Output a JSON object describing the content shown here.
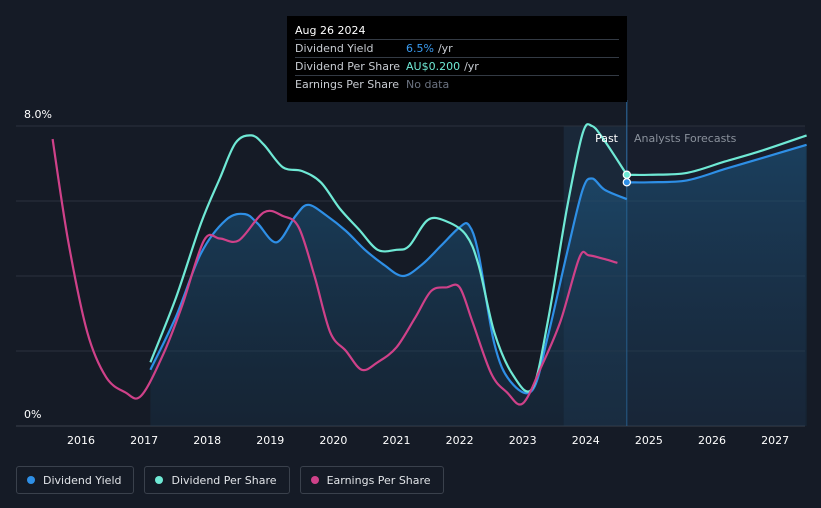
{
  "chart_data": {
    "type": "line",
    "x_ticks": [
      "2016",
      "2017",
      "2018",
      "2019",
      "2020",
      "2021",
      "2022",
      "2023",
      "2024",
      "2025",
      "2026",
      "2027"
    ],
    "y_labels": [
      "8.0%",
      "0%"
    ],
    "ylim": [
      0,
      8.0
    ],
    "past_label": "Past",
    "forecast_label": "Analysts Forecasts",
    "series": [
      {
        "name": "Dividend Yield",
        "color": "#2e8fe6",
        "points": [
          [
            2017.1,
            1.5
          ],
          [
            2017.5,
            2.9
          ],
          [
            2017.9,
            4.6
          ],
          [
            2018.3,
            5.5
          ],
          [
            2018.6,
            5.65
          ],
          [
            2018.8,
            5.4
          ],
          [
            2019.1,
            4.9
          ],
          [
            2019.4,
            5.6
          ],
          [
            2019.6,
            5.9
          ],
          [
            2019.9,
            5.6
          ],
          [
            2020.2,
            5.2
          ],
          [
            2020.5,
            4.7
          ],
          [
            2020.8,
            4.3
          ],
          [
            2021.1,
            4.0
          ],
          [
            2021.4,
            4.3
          ],
          [
            2021.7,
            4.8
          ],
          [
            2022.0,
            5.3
          ],
          [
            2022.15,
            5.35
          ],
          [
            2022.3,
            4.6
          ],
          [
            2022.55,
            2.2
          ],
          [
            2022.8,
            1.2
          ],
          [
            2023.15,
            0.95
          ],
          [
            2023.4,
            2.4
          ],
          [
            2023.7,
            4.6
          ],
          [
            2023.95,
            6.3
          ],
          [
            2024.1,
            6.6
          ],
          [
            2024.3,
            6.3
          ],
          [
            2024.65,
            6.05
          ]
        ],
        "forecast": [
          [
            2024.65,
            6.5
          ],
          [
            2025.0,
            6.5
          ],
          [
            2025.6,
            6.55
          ],
          [
            2026.2,
            6.85
          ],
          [
            2026.8,
            7.15
          ],
          [
            2027.5,
            7.5
          ]
        ]
      },
      {
        "name": "Dividend Per Share",
        "color": "#6fe9d5",
        "points": [
          [
            2017.1,
            1.7
          ],
          [
            2017.5,
            3.4
          ],
          [
            2017.9,
            5.4
          ],
          [
            2018.2,
            6.6
          ],
          [
            2018.45,
            7.55
          ],
          [
            2018.7,
            7.75
          ],
          [
            2018.9,
            7.5
          ],
          [
            2019.2,
            6.9
          ],
          [
            2019.5,
            6.8
          ],
          [
            2019.8,
            6.5
          ],
          [
            2020.1,
            5.8
          ],
          [
            2020.4,
            5.25
          ],
          [
            2020.7,
            4.7
          ],
          [
            2021.0,
            4.7
          ],
          [
            2021.2,
            4.8
          ],
          [
            2021.5,
            5.5
          ],
          [
            2021.8,
            5.45
          ],
          [
            2022.1,
            5.1
          ],
          [
            2022.3,
            4.3
          ],
          [
            2022.55,
            2.5
          ],
          [
            2022.85,
            1.35
          ],
          [
            2023.15,
            1.0
          ],
          [
            2023.4,
            2.8
          ],
          [
            2023.7,
            5.8
          ],
          [
            2023.95,
            7.8
          ],
          [
            2024.1,
            8.0
          ],
          [
            2024.3,
            7.6
          ],
          [
            2024.65,
            6.7
          ]
        ],
        "forecast": [
          [
            2024.65,
            6.7
          ],
          [
            2025.0,
            6.7
          ],
          [
            2025.6,
            6.75
          ],
          [
            2026.2,
            7.05
          ],
          [
            2026.8,
            7.35
          ],
          [
            2027.5,
            7.75
          ]
        ]
      },
      {
        "name": "Earnings Per Share",
        "color": "#cf4189",
        "points": [
          [
            2015.55,
            7.65
          ],
          [
            2015.8,
            4.9
          ],
          [
            2016.1,
            2.5
          ],
          [
            2016.4,
            1.3
          ],
          [
            2016.7,
            0.9
          ],
          [
            2016.95,
            0.8
          ],
          [
            2017.3,
            1.9
          ],
          [
            2017.6,
            3.2
          ],
          [
            2017.95,
            4.95
          ],
          [
            2018.2,
            5.0
          ],
          [
            2018.5,
            4.95
          ],
          [
            2018.9,
            5.7
          ],
          [
            2019.2,
            5.6
          ],
          [
            2019.45,
            5.3
          ],
          [
            2019.7,
            4.0
          ],
          [
            2019.95,
            2.5
          ],
          [
            2020.2,
            2.0
          ],
          [
            2020.45,
            1.5
          ],
          [
            2020.7,
            1.7
          ],
          [
            2021.0,
            2.1
          ],
          [
            2021.3,
            2.9
          ],
          [
            2021.55,
            3.6
          ],
          [
            2021.8,
            3.7
          ],
          [
            2022.0,
            3.7
          ],
          [
            2022.2,
            2.8
          ],
          [
            2022.5,
            1.4
          ],
          [
            2022.75,
            0.9
          ],
          [
            2023.0,
            0.6
          ],
          [
            2023.3,
            1.6
          ],
          [
            2023.6,
            2.8
          ],
          [
            2023.9,
            4.5
          ],
          [
            2024.05,
            4.55
          ],
          [
            2024.3,
            4.45
          ],
          [
            2024.5,
            4.35
          ]
        ],
        "forecast": []
      }
    ],
    "present_x": 2024.65,
    "forecast_band_start": 2023.65
  },
  "tooltip": {
    "date": "Aug 26 2024",
    "rows": [
      {
        "label": "Dividend Yield",
        "value": "6.5%",
        "unit": "/yr"
      },
      {
        "label": "Dividend Per Share",
        "value": "AU$0.200",
        "unit": "/yr"
      },
      {
        "label": "Earnings Per Share",
        "value": "No data",
        "unit": ""
      }
    ]
  },
  "legend": {
    "items": [
      {
        "label": "Dividend Yield",
        "color": "#2e8fe6"
      },
      {
        "label": "Dividend Per Share",
        "color": "#6fe9d5"
      },
      {
        "label": "Earnings Per Share",
        "color": "#cf4189"
      }
    ]
  }
}
